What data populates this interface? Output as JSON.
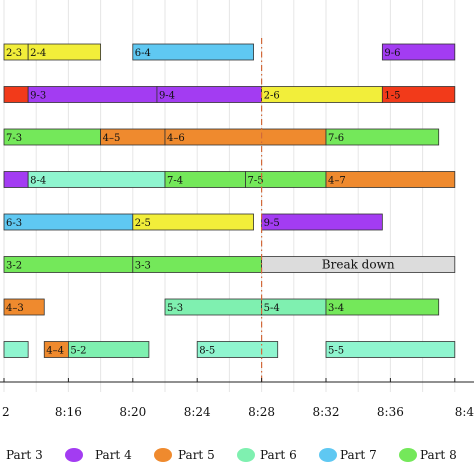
{
  "chart_data": {
    "type": "gantt",
    "x_unit": "time",
    "xlim": [
      "8:12",
      "8:40"
    ],
    "x_ticks": [
      "2",
      "8:16",
      "8:20",
      "8:24",
      "8:28",
      "8:32",
      "8:36",
      "8:4"
    ],
    "breakdown_time": "8:28",
    "colors": {
      "Part 3": "#a33cf2",
      "Part 4": "#ef8a2e",
      "Part 5": "#7ff0b0",
      "Part 6": "#5fc8f2",
      "Part 7": "#74e85a",
      "Part 8": "#8ff5cf",
      "Part 2": "#f2ee3a",
      "Part 1": "#f23a1a",
      "Break down": "#dcdcdc"
    },
    "rows": [
      {
        "tasks": [
          {
            "label": "2-3",
            "part": "Part 2",
            "start": "8:12",
            "end": "8:13:30"
          },
          {
            "label": "2-4",
            "part": "Part 2",
            "start": "8:13:30",
            "end": "8:18"
          },
          {
            "label": "6-4",
            "part": "Part 6",
            "start": "8:20",
            "end": "8:27:30"
          },
          {
            "label": "9-6",
            "part": "Part 3",
            "start": "8:35:30",
            "end": "8:40"
          }
        ]
      },
      {
        "tasks": [
          {
            "label": "",
            "part": "Part 1",
            "start": "8:12",
            "end": "8:13:30"
          },
          {
            "label": "9-3",
            "part": "Part 3",
            "start": "8:13:30",
            "end": "8:21:30"
          },
          {
            "label": "9-4",
            "part": "Part 3",
            "start": "8:21:30",
            "end": "8:28"
          },
          {
            "label": "2-6",
            "part": "Part 2",
            "start": "8:28",
            "end": "8:35:30"
          },
          {
            "label": "1-5",
            "part": "Part 1",
            "start": "8:35:30",
            "end": "8:40"
          }
        ]
      },
      {
        "tasks": [
          {
            "label": "7-3",
            "part": "Part 7",
            "start": "8:12",
            "end": "8:18"
          },
          {
            "label": "4–5",
            "part": "Part 4",
            "start": "8:18",
            "end": "8:22"
          },
          {
            "label": "4–6",
            "part": "Part 4",
            "start": "8:22",
            "end": "8:32"
          },
          {
            "label": "7-6",
            "part": "Part 7",
            "start": "8:32",
            "end": "8:39"
          }
        ]
      },
      {
        "tasks": [
          {
            "label": "",
            "part": "Part 3",
            "start": "8:12",
            "end": "8:13:30"
          },
          {
            "label": "8-4",
            "part": "Part 8",
            "start": "8:13:30",
            "end": "8:22"
          },
          {
            "label": "7-4",
            "part": "Part 7",
            "start": "8:22",
            "end": "8:27"
          },
          {
            "label": "7-5",
            "part": "Part 7",
            "start": "8:27",
            "end": "8:32"
          },
          {
            "label": "4–7",
            "part": "Part 4",
            "start": "8:32",
            "end": "8:40"
          }
        ]
      },
      {
        "tasks": [
          {
            "label": "6-3",
            "part": "Part 6",
            "start": "8:12",
            "end": "8:20"
          },
          {
            "label": "2-5",
            "part": "Part 2",
            "start": "8:20",
            "end": "8:27:30"
          },
          {
            "label": "9-5",
            "part": "Part 3",
            "start": "8:28",
            "end": "8:35:30"
          }
        ]
      },
      {
        "tasks": [
          {
            "label": "3-2",
            "part": "Part 7",
            "start": "8:12",
            "end": "8:20"
          },
          {
            "label": "3-3",
            "part": "Part 7",
            "start": "8:20",
            "end": "8:28"
          },
          {
            "label": "Break down",
            "part": "Break down",
            "start": "8:28",
            "end": "8:40"
          }
        ]
      },
      {
        "tasks": [
          {
            "label": "4–3",
            "part": "Part 4",
            "start": "8:12",
            "end": "8:14:30"
          },
          {
            "label": "5-3",
            "part": "Part 5",
            "start": "8:22",
            "end": "8:28"
          },
          {
            "label": "5-4",
            "part": "Part 5",
            "start": "8:28",
            "end": "8:32"
          },
          {
            "label": "3-4",
            "part": "Part 7",
            "start": "8:32",
            "end": "8:39"
          }
        ]
      },
      {
        "tasks": [
          {
            "label": "",
            "part": "Part 8",
            "start": "8:12",
            "end": "8:13:30"
          },
          {
            "label": "4–4",
            "part": "Part 4",
            "start": "8:14:30",
            "end": "8:16"
          },
          {
            "label": "5-2",
            "part": "Part 5",
            "start": "8:16",
            "end": "8:21"
          },
          {
            "label": "8-5",
            "part": "Part 8",
            "start": "8:24",
            "end": "8:29"
          },
          {
            "label": "5-5",
            "part": "Part 8",
            "start": "8:32",
            "end": "8:40"
          }
        ]
      }
    ],
    "legend": [
      {
        "label": "Part 3",
        "color": "#a33cf2"
      },
      {
        "label": "Part 4",
        "color": "#ef8a2e"
      },
      {
        "label": "Part 5",
        "color": "#7ff0b0"
      },
      {
        "label": "Part 6",
        "color": "#5fc8f2"
      },
      {
        "label": "Part 7",
        "color": "#74e85a"
      },
      {
        "label": "Part 8",
        "color": "#8ff5cf"
      }
    ]
  }
}
